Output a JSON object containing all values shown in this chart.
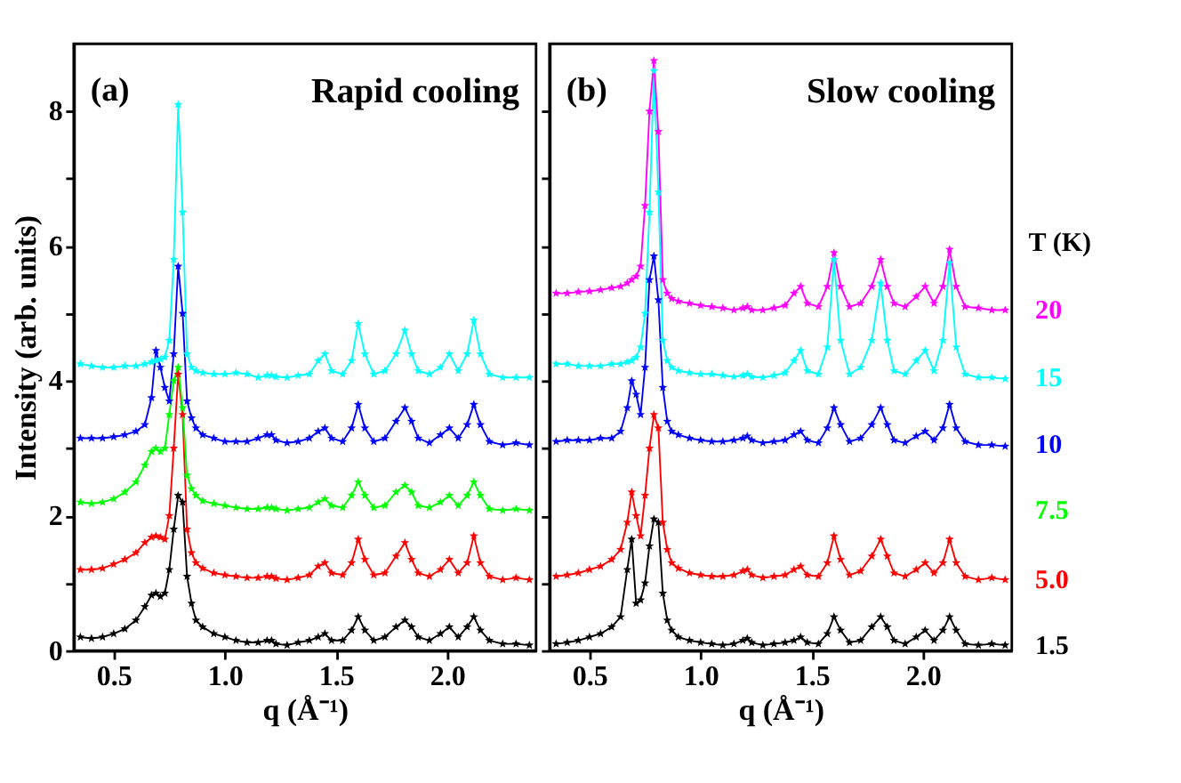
{
  "chart_data": [
    {
      "type": "line",
      "annotations": [
        "(a)",
        "Rapid cooling"
      ],
      "xlabel": "q (Å⁻¹)",
      "ylabel": "Intensity (arb. units)",
      "x": [
        0.35,
        0.4,
        0.45,
        0.5,
        0.55,
        0.6,
        0.64,
        0.67,
        0.69,
        0.71,
        0.73,
        0.75,
        0.77,
        0.79,
        0.81,
        0.83,
        0.85,
        0.87,
        0.9,
        0.95,
        1.0,
        1.05,
        1.1,
        1.15,
        1.19,
        1.21,
        1.23,
        1.28,
        1.33,
        1.38,
        1.42,
        1.45,
        1.48,
        1.53,
        1.57,
        1.6,
        1.63,
        1.67,
        1.72,
        1.77,
        1.81,
        1.84,
        1.87,
        1.92,
        1.97,
        2.01,
        2.05,
        2.09,
        2.12,
        2.15,
        2.19,
        2.25,
        2.31,
        2.37
      ],
      "xlim": [
        0.32,
        2.4
      ],
      "ylim": [
        0,
        9
      ],
      "xticks": [
        {
          "value": 0.5,
          "label": "0.5"
        },
        {
          "value": 1,
          "label": "1.0"
        },
        {
          "value": 1.5,
          "label": "1.5"
        },
        {
          "value": 2,
          "label": "2.0"
        }
      ],
      "yticks": [
        0,
        {
          "value": 1,
          "label": null
        },
        2,
        {
          "value": 3,
          "label": null
        },
        4,
        {
          "value": 5,
          "label": null
        },
        6,
        {
          "value": 7,
          "label": null
        },
        8
      ],
      "grid": false,
      "legend": "right",
      "marker": "star",
      "line_style": "solid",
      "series": [
        {
          "name": "1.5",
          "color": "#000000",
          "values": [
            0.2,
            0.18,
            0.2,
            0.25,
            0.32,
            0.45,
            0.65,
            0.82,
            0.85,
            0.8,
            0.85,
            1.2,
            1.8,
            2.3,
            2.2,
            1.1,
            0.7,
            0.45,
            0.35,
            0.25,
            0.2,
            0.15,
            0.12,
            0.12,
            0.15,
            0.15,
            0.1,
            0.08,
            0.12,
            0.15,
            0.2,
            0.25,
            0.15,
            0.15,
            0.3,
            0.5,
            0.3,
            0.15,
            0.2,
            0.35,
            0.45,
            0.35,
            0.2,
            0.15,
            0.25,
            0.35,
            0.2,
            0.35,
            0.5,
            0.3,
            0.15,
            0.1,
            0.1,
            0.08
          ]
        },
        {
          "name": "5.0",
          "color": "#ff0000",
          "values": [
            1.2,
            1.2,
            1.22,
            1.28,
            1.35,
            1.45,
            1.6,
            1.68,
            1.7,
            1.68,
            1.65,
            2.0,
            3.0,
            4.1,
            3.5,
            1.8,
            1.45,
            1.3,
            1.22,
            1.15,
            1.12,
            1.1,
            1.08,
            1.08,
            1.1,
            1.1,
            1.07,
            1.05,
            1.08,
            1.12,
            1.25,
            1.3,
            1.15,
            1.12,
            1.3,
            1.65,
            1.35,
            1.12,
            1.15,
            1.4,
            1.6,
            1.35,
            1.15,
            1.1,
            1.2,
            1.35,
            1.15,
            1.3,
            1.7,
            1.3,
            1.1,
            1.05,
            1.08,
            1.05
          ]
        },
        {
          "name": "7.5",
          "color": "#00ff00",
          "values": [
            2.2,
            2.18,
            2.2,
            2.25,
            2.35,
            2.5,
            2.75,
            2.95,
            3.0,
            2.95,
            3.0,
            3.5,
            4.0,
            4.2,
            3.6,
            2.6,
            2.4,
            2.3,
            2.22,
            2.18,
            2.15,
            2.12,
            2.1,
            2.1,
            2.12,
            2.12,
            2.1,
            2.08,
            2.1,
            2.12,
            2.2,
            2.25,
            2.15,
            2.12,
            2.3,
            2.5,
            2.3,
            2.12,
            2.15,
            2.35,
            2.45,
            2.35,
            2.15,
            2.12,
            2.2,
            2.3,
            2.15,
            2.3,
            2.5,
            2.3,
            2.1,
            2.08,
            2.1,
            2.08
          ]
        },
        {
          "name": "10",
          "color": "#0000ff",
          "values": [
            3.15,
            3.15,
            3.15,
            3.17,
            3.2,
            3.25,
            3.35,
            3.75,
            4.45,
            4.2,
            3.9,
            3.7,
            4.4,
            5.7,
            5.0,
            3.7,
            3.45,
            3.3,
            3.2,
            3.15,
            3.1,
            3.1,
            3.1,
            3.15,
            3.2,
            3.2,
            3.12,
            3.08,
            3.1,
            3.15,
            3.25,
            3.3,
            3.15,
            3.1,
            3.3,
            3.65,
            3.3,
            3.1,
            3.15,
            3.4,
            3.6,
            3.4,
            3.15,
            3.08,
            3.2,
            3.3,
            3.15,
            3.35,
            3.65,
            3.35,
            3.1,
            3.05,
            3.08,
            3.05
          ]
        },
        {
          "name": "15",
          "color": "#00ffff",
          "values": [
            4.25,
            4.22,
            4.2,
            4.2,
            4.22,
            4.22,
            4.25,
            4.28,
            4.3,
            4.32,
            4.35,
            4.6,
            5.8,
            8.1,
            6.5,
            4.4,
            4.2,
            4.15,
            4.12,
            4.1,
            4.1,
            4.12,
            4.1,
            4.05,
            4.08,
            4.08,
            4.06,
            4.05,
            4.08,
            4.1,
            4.3,
            4.4,
            4.15,
            4.1,
            4.3,
            4.85,
            4.4,
            4.1,
            4.15,
            4.4,
            4.75,
            4.4,
            4.15,
            4.1,
            4.2,
            4.4,
            4.15,
            4.4,
            4.9,
            4.4,
            4.1,
            4.05,
            4.05,
            4.05
          ]
        }
      ]
    },
    {
      "type": "line",
      "annotations": [
        "(b)",
        "Slow cooling"
      ],
      "xlabel": "q (Å⁻¹)",
      "legend_title": "T (K)",
      "x": [
        0.35,
        0.4,
        0.45,
        0.5,
        0.55,
        0.6,
        0.64,
        0.67,
        0.69,
        0.71,
        0.73,
        0.75,
        0.77,
        0.79,
        0.81,
        0.83,
        0.85,
        0.87,
        0.9,
        0.95,
        1.0,
        1.05,
        1.1,
        1.15,
        1.19,
        1.21,
        1.23,
        1.28,
        1.33,
        1.38,
        1.42,
        1.45,
        1.48,
        1.53,
        1.57,
        1.6,
        1.63,
        1.67,
        1.72,
        1.77,
        1.81,
        1.84,
        1.87,
        1.92,
        1.97,
        2.01,
        2.05,
        2.09,
        2.12,
        2.15,
        2.19,
        2.25,
        2.31,
        2.37
      ],
      "xlim": [
        0.32,
        2.4
      ],
      "ylim": [
        0,
        9
      ],
      "xticks": [
        {
          "value": 0.5,
          "label": "0.5"
        },
        {
          "value": 1,
          "label": "1.0"
        },
        {
          "value": 1.5,
          "label": "1.5"
        },
        {
          "value": 2,
          "label": "2.0"
        }
      ],
      "yticks": [
        0,
        {
          "value": 1,
          "label": null
        },
        2,
        {
          "value": 3,
          "label": null
        },
        4,
        {
          "value": 5,
          "label": null
        },
        6,
        {
          "value": 7,
          "label": null
        },
        8
      ],
      "tick_labels": "x",
      "grid": false,
      "legend": "right",
      "marker": "star",
      "line_style": "solid",
      "series": [
        {
          "name": "1.5",
          "color": "#000000",
          "values": [
            0.1,
            0.12,
            0.15,
            0.2,
            0.25,
            0.35,
            0.5,
            1.2,
            1.65,
            0.7,
            0.75,
            1.0,
            1.55,
            1.95,
            1.9,
            0.85,
            0.45,
            0.3,
            0.2,
            0.15,
            0.12,
            0.1,
            0.08,
            0.1,
            0.15,
            0.18,
            0.12,
            0.08,
            0.1,
            0.12,
            0.15,
            0.2,
            0.12,
            0.1,
            0.25,
            0.5,
            0.3,
            0.12,
            0.15,
            0.35,
            0.5,
            0.35,
            0.15,
            0.1,
            0.2,
            0.3,
            0.15,
            0.3,
            0.5,
            0.3,
            0.1,
            0.08,
            0.1,
            0.08
          ]
        },
        {
          "name": "5.0",
          "color": "#ff0000",
          "values": [
            1.1,
            1.12,
            1.15,
            1.2,
            1.25,
            1.35,
            1.5,
            1.9,
            2.35,
            2.0,
            1.7,
            2.3,
            3.0,
            3.5,
            3.3,
            1.9,
            1.5,
            1.3,
            1.22,
            1.15,
            1.12,
            1.1,
            1.1,
            1.12,
            1.18,
            1.2,
            1.12,
            1.08,
            1.1,
            1.12,
            1.2,
            1.25,
            1.12,
            1.1,
            1.3,
            1.7,
            1.35,
            1.12,
            1.18,
            1.4,
            1.65,
            1.4,
            1.15,
            1.1,
            1.2,
            1.3,
            1.15,
            1.3,
            1.65,
            1.3,
            1.1,
            1.05,
            1.08,
            1.05
          ]
        },
        {
          "name": "10",
          "color": "#0000ff",
          "values": [
            3.1,
            3.12,
            3.12,
            3.12,
            3.15,
            3.15,
            3.25,
            3.6,
            4.0,
            3.8,
            3.5,
            4.2,
            5.5,
            5.85,
            5.2,
            3.9,
            3.4,
            3.25,
            3.2,
            3.15,
            3.12,
            3.1,
            3.1,
            3.12,
            3.15,
            3.18,
            3.12,
            3.08,
            3.1,
            3.12,
            3.2,
            3.25,
            3.12,
            3.08,
            3.3,
            3.6,
            3.35,
            3.1,
            3.15,
            3.35,
            3.6,
            3.35,
            3.12,
            3.08,
            3.18,
            3.25,
            3.12,
            3.3,
            3.65,
            3.3,
            3.1,
            3.05,
            3.05,
            3.03
          ]
        },
        {
          "name": "15",
          "color": "#00ffff",
          "values": [
            4.25,
            4.25,
            4.22,
            4.22,
            4.22,
            4.25,
            4.25,
            4.28,
            4.3,
            4.35,
            4.5,
            5.0,
            6.5,
            8.6,
            6.8,
            4.6,
            4.3,
            4.2,
            4.15,
            4.12,
            4.1,
            4.1,
            4.08,
            4.06,
            4.08,
            4.1,
            4.06,
            4.05,
            4.08,
            4.12,
            4.3,
            4.45,
            4.15,
            4.1,
            4.5,
            5.8,
            4.6,
            4.1,
            4.2,
            4.6,
            5.45,
            4.6,
            4.15,
            4.1,
            4.3,
            4.45,
            4.15,
            4.6,
            5.75,
            4.5,
            4.1,
            4.05,
            4.05,
            4.03
          ]
        },
        {
          "name": "20",
          "color": "#ff00ff",
          "values": [
            5.3,
            5.3,
            5.32,
            5.33,
            5.35,
            5.38,
            5.4,
            5.45,
            5.5,
            5.55,
            5.7,
            6.6,
            8.0,
            8.75,
            7.7,
            5.5,
            5.3,
            5.22,
            5.18,
            5.15,
            5.12,
            5.1,
            5.08,
            5.05,
            5.08,
            5.1,
            5.05,
            5.05,
            5.08,
            5.12,
            5.3,
            5.4,
            5.15,
            5.1,
            5.4,
            5.9,
            5.4,
            5.1,
            5.15,
            5.4,
            5.8,
            5.4,
            5.15,
            5.1,
            5.25,
            5.4,
            5.15,
            5.4,
            5.95,
            5.4,
            5.1,
            5.08,
            5.05,
            5.05
          ]
        }
      ]
    }
  ]
}
